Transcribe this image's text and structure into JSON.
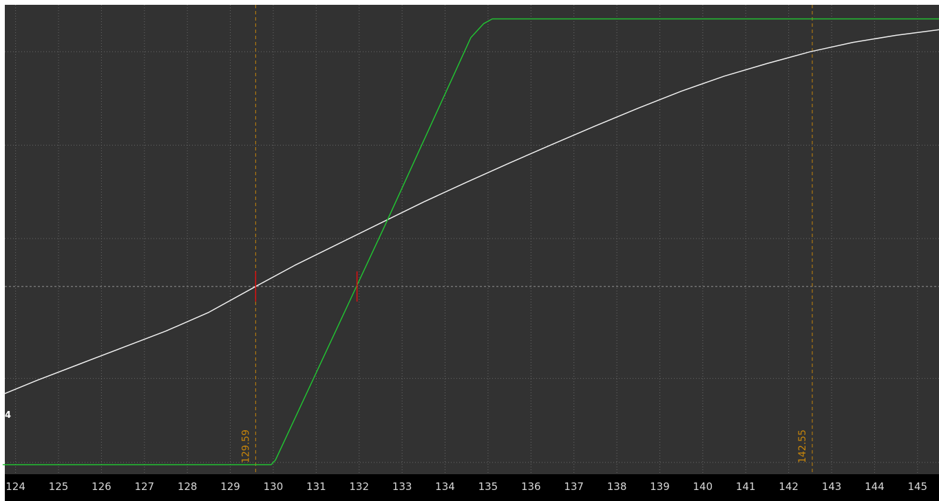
{
  "colors": {
    "background": "#323232",
    "axis_bar": "#000000",
    "axis_text": "#d8d8d8",
    "grid": "#6a6a6a",
    "midline": "#8a8a8a",
    "marker": "#c8860a",
    "white_series": "#f2f2f2",
    "green_series": "#22c232",
    "red_tick": "#e01010"
  },
  "edge_glyph": "4",
  "chart_data": {
    "type": "line",
    "title": "",
    "xlabel": "",
    "ylabel": "",
    "xlim": [
      123.75,
      145.5
    ],
    "ylim": [
      0,
      1
    ],
    "grid": true,
    "x_ticks": [
      124,
      125,
      126,
      127,
      128,
      129,
      130,
      131,
      132,
      133,
      134,
      135,
      136,
      137,
      138,
      139,
      140,
      141,
      142,
      143,
      144,
      145
    ],
    "y_gridlines": [
      0.025,
      0.204,
      0.502,
      0.701,
      0.9
    ],
    "horizontal_reference": 0.4,
    "series": [
      {
        "color": "#f2f2f2",
        "x": [
          123.7,
          124.5,
          125.5,
          126.5,
          127.5,
          128.5,
          129.59,
          130.5,
          131.5,
          132.5,
          133.5,
          134.5,
          135.5,
          136.5,
          137.5,
          138.5,
          139.5,
          140.5,
          141.5,
          142.5,
          143.5,
          144.5,
          145.5
        ],
        "y": [
          0.17,
          0.2,
          0.235,
          0.27,
          0.305,
          0.345,
          0.4,
          0.445,
          0.49,
          0.535,
          0.58,
          0.622,
          0.663,
          0.703,
          0.742,
          0.78,
          0.816,
          0.848,
          0.875,
          0.9,
          0.92,
          0.935,
          0.947
        ]
      },
      {
        "color": "#22c232",
        "x": [
          123.7,
          129.95,
          130.05,
          132.6,
          134.6,
          134.9,
          135.1,
          145.5
        ],
        "y": [
          0.02,
          0.02,
          0.03,
          0.53,
          0.93,
          0.96,
          0.97,
          0.97
        ]
      }
    ],
    "vertical_markers": [
      {
        "x": 129.59,
        "label": "129.59"
      },
      {
        "x": 142.55,
        "label": "142.55"
      }
    ],
    "red_ticks": [
      {
        "x": 129.59,
        "y": 0.4
      },
      {
        "x": 131.95,
        "y": 0.4
      }
    ]
  }
}
